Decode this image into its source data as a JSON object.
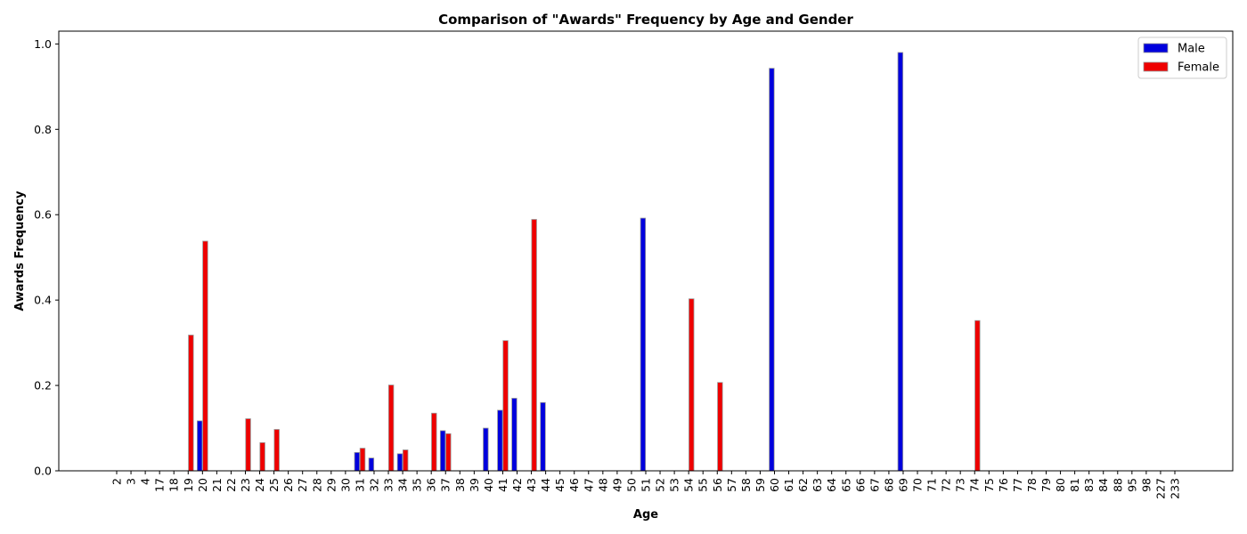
{
  "chart_data": {
    "type": "bar",
    "title": "Comparison of \"Awards\" Frequency by Age and Gender",
    "xlabel": "Age",
    "ylabel": "Awards Frequency",
    "ylim": [
      0,
      1.03
    ],
    "yticks": [
      "0.0",
      "0.2",
      "0.4",
      "0.6",
      "0.8",
      "1.0"
    ],
    "grid": false,
    "legend_position": "top-right",
    "categories": [
      "2",
      "3",
      "4",
      "17",
      "18",
      "19",
      "20",
      "21",
      "22",
      "23",
      "24",
      "25",
      "26",
      "27",
      "28",
      "29",
      "30",
      "31",
      "32",
      "33",
      "34",
      "35",
      "36",
      "37",
      "38",
      "39",
      "40",
      "41",
      "42",
      "43",
      "44",
      "45",
      "46",
      "47",
      "48",
      "49",
      "50",
      "51",
      "52",
      "53",
      "54",
      "55",
      "56",
      "57",
      "58",
      "59",
      "60",
      "61",
      "62",
      "63",
      "64",
      "65",
      "66",
      "67",
      "68",
      "69",
      "70",
      "71",
      "72",
      "73",
      "74",
      "75",
      "76",
      "77",
      "78",
      "79",
      "80",
      "81",
      "83",
      "84",
      "88",
      "95",
      "98",
      "227",
      "233"
    ],
    "series": [
      {
        "name": "Male",
        "color": "#0000dd",
        "values": [
          0,
          0,
          0,
          0,
          0,
          0,
          0.117,
          0,
          0,
          0,
          0,
          0,
          0,
          0,
          0,
          0,
          0,
          0.043,
          0.03,
          0,
          0.04,
          0,
          0,
          0.094,
          0,
          0,
          0.1,
          0.142,
          0.17,
          0,
          0.16,
          0,
          0,
          0,
          0,
          0,
          0,
          0.592,
          0,
          0,
          0,
          0,
          0,
          0,
          0,
          0,
          0.943,
          0,
          0,
          0,
          0,
          0,
          0,
          0,
          0,
          0.98,
          0,
          0,
          0,
          0,
          0,
          0,
          0,
          0,
          0,
          0,
          0,
          0,
          0,
          0,
          0,
          0,
          0,
          0,
          0
        ]
      },
      {
        "name": "Female",
        "color": "#ee0000",
        "values": [
          0,
          0,
          0,
          0,
          0,
          0.318,
          0.538,
          0,
          0,
          0.122,
          0.066,
          0.097,
          0,
          0,
          0,
          0,
          0,
          0.053,
          0,
          0.201,
          0.049,
          0,
          0.135,
          0.087,
          0,
          0,
          0,
          0.305,
          0,
          0.589,
          0,
          0,
          0,
          0,
          0,
          0,
          0,
          0,
          0,
          0,
          0.403,
          0,
          0.207,
          0,
          0,
          0,
          0,
          0,
          0,
          0,
          0,
          0,
          0,
          0,
          0,
          0,
          0,
          0,
          0,
          0,
          0.352,
          0,
          0,
          0,
          0,
          0,
          0,
          0,
          0,
          0,
          0,
          0,
          0,
          0,
          0
        ]
      }
    ]
  }
}
